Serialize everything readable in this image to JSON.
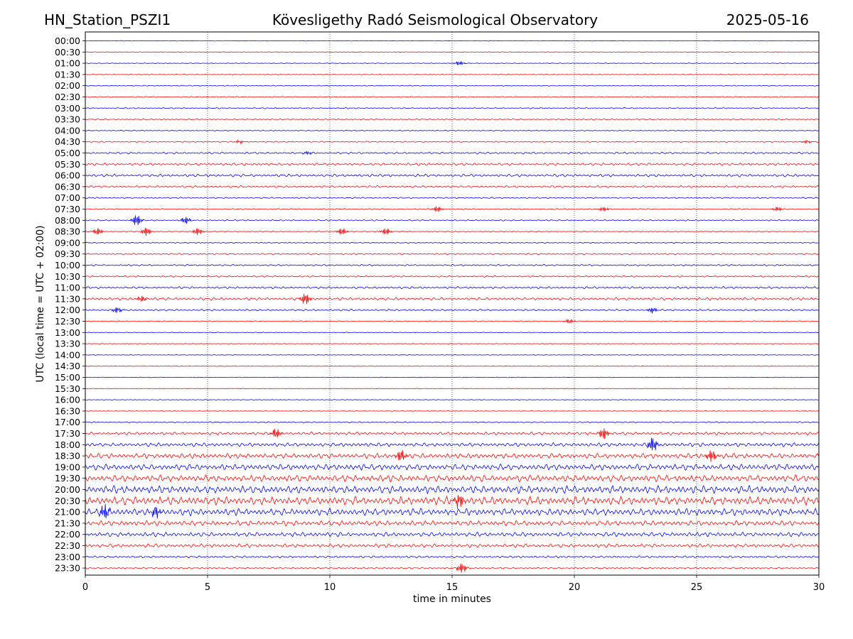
{
  "header": {
    "station": "HN_Station_PSZI1",
    "observatory": "Kövesligethy Radó Seismological Observatory",
    "date": "2025-05-16"
  },
  "chart_data": {
    "type": "line",
    "title": "Kövesligethy Radó Seismological Observatory",
    "xlabel": "time in minutes",
    "ylabel": "UTC (local time = UTC + 02:00)",
    "xlim": [
      0,
      30
    ],
    "x_ticks": [
      0,
      5,
      10,
      15,
      20,
      25,
      30
    ],
    "grid": "vertical dotted lines at 5, 10, 15, 20, 25 minutes",
    "colors": {
      "even_rows": "#0000ff",
      "odd_rows": "#ff0000"
    },
    "rows": [
      "00:00",
      "00:30",
      "01:00",
      "01:30",
      "02:00",
      "02:30",
      "03:00",
      "03:30",
      "04:00",
      "04:30",
      "05:00",
      "05:30",
      "06:00",
      "06:30",
      "07:00",
      "07:30",
      "08:00",
      "08:30",
      "09:00",
      "09:30",
      "10:00",
      "10:30",
      "11:00",
      "11:30",
      "12:00",
      "12:30",
      "13:00",
      "13:30",
      "14:00",
      "14:30",
      "15:00",
      "15:30",
      "16:00",
      "16:30",
      "17:00",
      "17:30",
      "18:00",
      "18:30",
      "19:00",
      "19:30",
      "20:00",
      "20:30",
      "21:00",
      "21:30",
      "22:00",
      "22:30",
      "23:00",
      "23:30"
    ],
    "noise_level": [
      0.4,
      0.4,
      0.5,
      0.5,
      0.6,
      0.7,
      0.8,
      0.8,
      0.6,
      0.8,
      1.2,
      1.6,
      1.8,
      1.4,
      0.9,
      0.8,
      0.9,
      0.6,
      0.7,
      0.9,
      1.0,
      1.0,
      1.4,
      1.8,
      1.2,
      0.7,
      0.5,
      0.4,
      0.4,
      0.4,
      0.4,
      0.3,
      0.4,
      0.4,
      0.8,
      2.0,
      2.6,
      3.4,
      4.2,
      4.6,
      5.2,
      5.6,
      4.8,
      3.4,
      3.0,
      2.4,
      1.4,
      1.0
    ],
    "bursts": [
      {
        "row": "01:00",
        "t": 15.3,
        "amp": 3
      },
      {
        "row": "04:30",
        "t": 6.3,
        "amp": 2
      },
      {
        "row": "04:30",
        "t": 29.5,
        "amp": 2
      },
      {
        "row": "05:00",
        "t": 9.1,
        "amp": 2
      },
      {
        "row": "07:30",
        "t": 21.2,
        "amp": 3
      },
      {
        "row": "07:30",
        "t": 28.3,
        "amp": 3
      },
      {
        "row": "07:30",
        "t": 14.4,
        "amp": 4
      },
      {
        "row": "08:00",
        "t": 2.1,
        "amp": 8
      },
      {
        "row": "08:00",
        "t": 4.1,
        "amp": 5
      },
      {
        "row": "08:30",
        "t": 0.5,
        "amp": 5
      },
      {
        "row": "08:30",
        "t": 2.5,
        "amp": 6
      },
      {
        "row": "08:30",
        "t": 4.6,
        "amp": 5
      },
      {
        "row": "08:30",
        "t": 10.5,
        "amp": 5
      },
      {
        "row": "08:30",
        "t": 12.3,
        "amp": 5
      },
      {
        "row": "11:30",
        "t": 9.0,
        "amp": 8
      },
      {
        "row": "11:30",
        "t": 2.3,
        "amp": 4
      },
      {
        "row": "12:00",
        "t": 1.3,
        "amp": 4
      },
      {
        "row": "12:00",
        "t": 23.2,
        "amp": 4
      },
      {
        "row": "12:30",
        "t": 19.8,
        "amp": 3
      },
      {
        "row": "17:30",
        "t": 21.2,
        "amp": 8
      },
      {
        "row": "17:30",
        "t": 7.8,
        "amp": 7
      },
      {
        "row": "18:00",
        "t": 23.2,
        "amp": 10
      },
      {
        "row": "18:30",
        "t": 12.9,
        "amp": 8
      },
      {
        "row": "18:30",
        "t": 25.6,
        "amp": 8
      },
      {
        "row": "20:30",
        "t": 15.3,
        "amp": 10
      },
      {
        "row": "21:00",
        "t": 0.8,
        "amp": 10
      },
      {
        "row": "21:00",
        "t": 2.9,
        "amp": 8
      },
      {
        "row": "23:30",
        "t": 15.4,
        "amp": 7
      }
    ]
  }
}
